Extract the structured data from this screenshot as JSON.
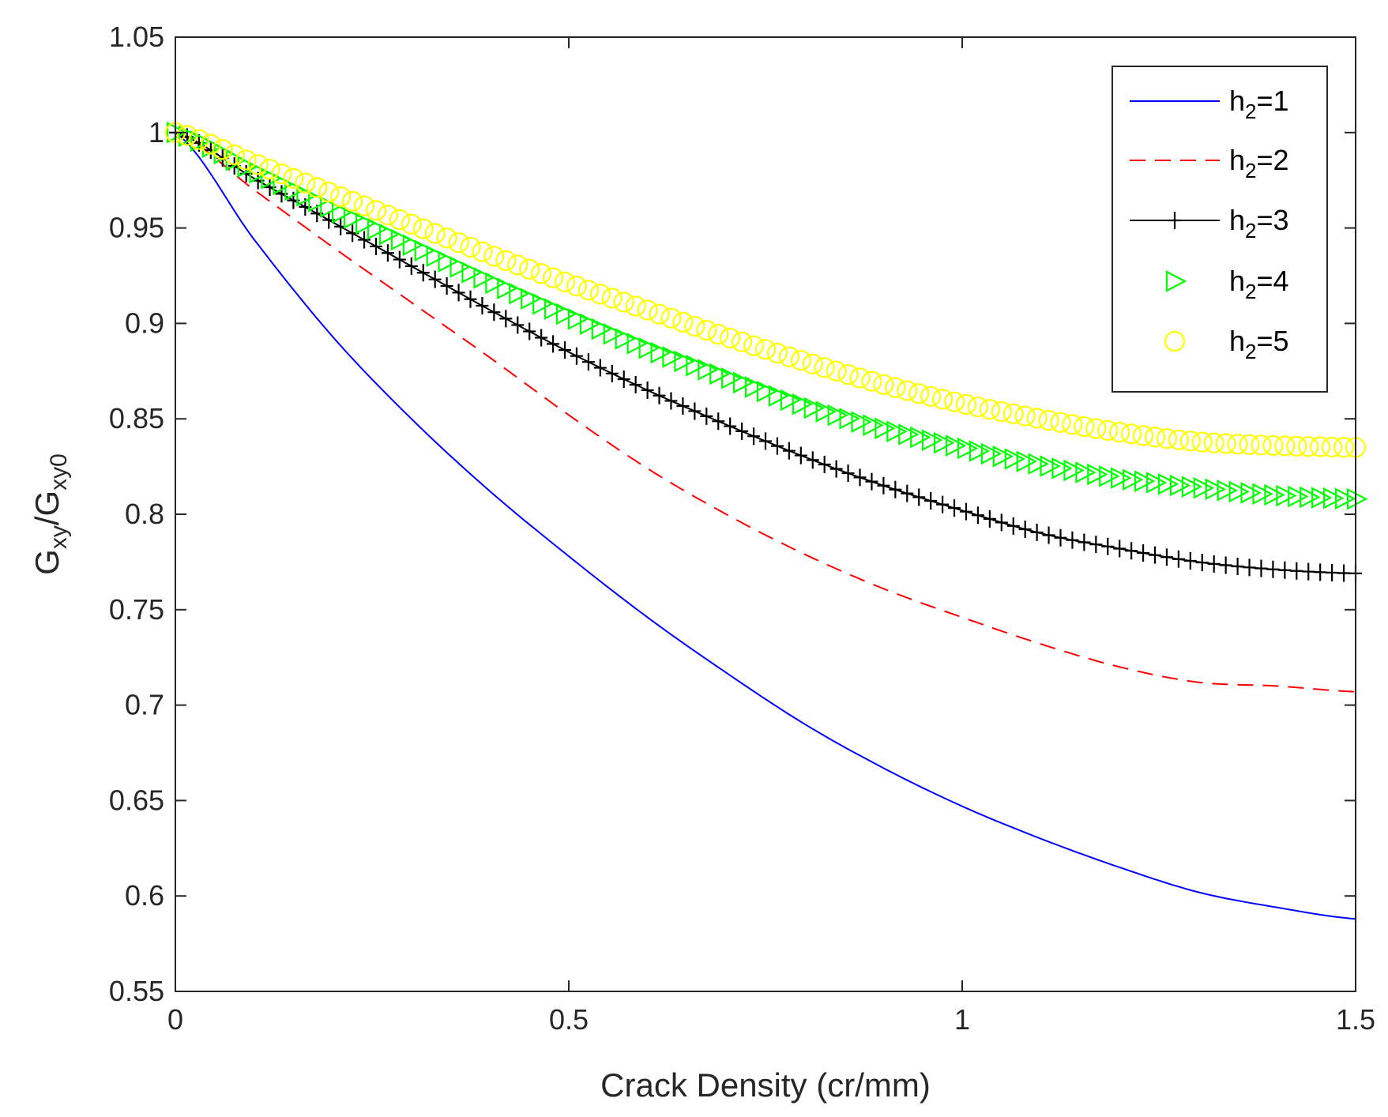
{
  "chart_data": {
    "type": "line",
    "title": "",
    "xlabel": "Crack Density (cr/mm)",
    "ylabel": {
      "base1": "G",
      "sub1": "xy",
      "sep": "/",
      "base2": "G",
      "sub2": "xy0"
    },
    "xlim": [
      0,
      1.5
    ],
    "ylim": [
      0.55,
      1.05
    ],
    "x_ticks": [
      0,
      0.5,
      1,
      1.5
    ],
    "x_tick_labels": [
      "0",
      "0.5",
      "1",
      "1.5"
    ],
    "y_ticks": [
      0.55,
      0.6,
      0.65,
      0.7,
      0.75,
      0.8,
      0.85,
      0.9,
      0.95,
      1,
      1.05
    ],
    "y_tick_labels": [
      "0.55",
      "0.6",
      "0.65",
      "0.7",
      "0.75",
      "0.8",
      "0.85",
      "0.9",
      "0.95",
      "1",
      "1.05"
    ],
    "grid": false,
    "legend_position": "top-right",
    "x": [
      0,
      0.1,
      0.2,
      0.3,
      0.4,
      0.5,
      0.6,
      0.7,
      0.8,
      0.9,
      1.0,
      1.1,
      1.2,
      1.3,
      1.4,
      1.5
    ],
    "series": [
      {
        "name": "h2=1",
        "legend": {
          "base": "h",
          "sub": "2",
          "rest": "=1"
        },
        "color": "#0000ff",
        "style": "solid",
        "marker": "none",
        "values": [
          1.0,
          0.944,
          0.893,
          0.85,
          0.812,
          0.778,
          0.746,
          0.717,
          0.69,
          0.667,
          0.647,
          0.63,
          0.615,
          0.602,
          0.594,
          0.588
        ]
      },
      {
        "name": "h2=2",
        "legend": {
          "base": "h",
          "sub": "2",
          "rest": "=2"
        },
        "color": "#ff0000",
        "style": "dashed",
        "marker": "none",
        "values": [
          1.0,
          0.97,
          0.94,
          0.911,
          0.882,
          0.852,
          0.824,
          0.8,
          0.779,
          0.761,
          0.746,
          0.732,
          0.72,
          0.712,
          0.71,
          0.707
        ]
      },
      {
        "name": "h2=3",
        "legend": {
          "base": "h",
          "sub": "2",
          "rest": "=3"
        },
        "color": "#000000",
        "style": "solid",
        "marker": "plus",
        "values": [
          1.0,
          0.976,
          0.953,
          0.93,
          0.907,
          0.885,
          0.865,
          0.847,
          0.83,
          0.815,
          0.802,
          0.79,
          0.782,
          0.775,
          0.771,
          0.769
        ]
      },
      {
        "name": "h2=4",
        "legend": {
          "base": "h",
          "sub": "2",
          "rest": "=4"
        },
        "color": "#00ff00",
        "style": "none",
        "marker": "triangle-right",
        "values": [
          1.0,
          0.98,
          0.96,
          0.941,
          0.922,
          0.904,
          0.887,
          0.872,
          0.857,
          0.845,
          0.835,
          0.826,
          0.819,
          0.814,
          0.81,
          0.808
        ]
      },
      {
        "name": "h2=5",
        "legend": {
          "base": "h",
          "sub": "2",
          "rest": "=5"
        },
        "color": "#ffff00",
        "style": "none",
        "marker": "circle",
        "values": [
          1.0,
          0.984,
          0.968,
          0.952,
          0.936,
          0.921,
          0.907,
          0.893,
          0.88,
          0.868,
          0.858,
          0.85,
          0.843,
          0.838,
          0.836,
          0.835
        ]
      }
    ]
  }
}
